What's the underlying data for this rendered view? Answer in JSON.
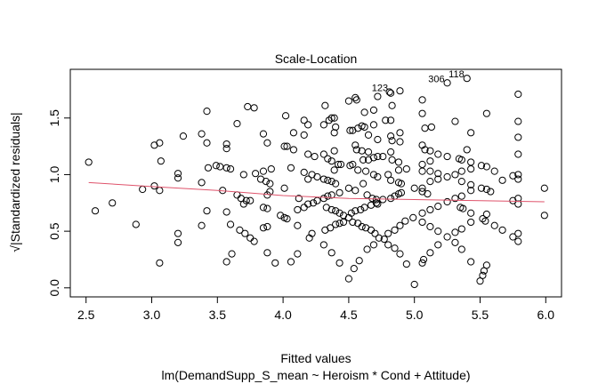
{
  "chart_data": {
    "type": "scatter",
    "title": "Scale-Location",
    "xlabel": "Fitted values",
    "ylabel": "√|Standardized residuals|",
    "subtitle": "lm(DemandSupp_S_mean ~ Heroism * Cond + Attitude)",
    "xlim": [
      2.38,
      6.12
    ],
    "ylim": [
      -0.08,
      1.93
    ],
    "x_ticks": [
      "2.5",
      "3.0",
      "3.5",
      "4.0",
      "4.5",
      "5.0",
      "5.5",
      "6.0"
    ],
    "y_ticks": [
      "0.0",
      "0.5",
      "1.0",
      "1.5"
    ],
    "grid": false,
    "point_color": "#000000",
    "smooth_color": "#DF536B",
    "smooth_line": [
      [
        2.52,
        0.93
      ],
      [
        3.0,
        0.895
      ],
      [
        3.5,
        0.86
      ],
      [
        4.0,
        0.815
      ],
      [
        4.5,
        0.79
      ],
      [
        5.0,
        0.78
      ],
      [
        5.5,
        0.77
      ],
      [
        5.99,
        0.76
      ]
    ],
    "labeled_points": [
      {
        "label": "123",
        "x": 4.82,
        "y": 1.73
      },
      {
        "label": "306",
        "x": 5.25,
        "y": 1.81
      },
      {
        "label": "118",
        "x": 5.4,
        "y": 1.85
      }
    ],
    "points": [
      [
        2.52,
        1.11
      ],
      [
        2.57,
        0.68
      ],
      [
        2.7,
        0.75
      ],
      [
        2.88,
        0.56
      ],
      [
        2.93,
        0.87
      ],
      [
        3.02,
        1.26
      ],
      [
        3.06,
        1.28
      ],
      [
        3.02,
        0.9
      ],
      [
        3.06,
        0.86
      ],
      [
        3.07,
        1.12
      ],
      [
        3.06,
        0.22
      ],
      [
        3.2,
        1.01
      ],
      [
        3.2,
        0.97
      ],
      [
        3.2,
        0.48
      ],
      [
        3.2,
        0.4
      ],
      [
        3.24,
        1.34
      ],
      [
        3.38,
        1.36
      ],
      [
        3.38,
        0.93
      ],
      [
        3.38,
        0.55
      ],
      [
        3.42,
        1.56
      ],
      [
        3.42,
        1.28
      ],
      [
        3.42,
        0.68
      ],
      [
        3.43,
        1.06
      ],
      [
        3.49,
        1.08
      ],
      [
        3.52,
        1.07
      ],
      [
        3.54,
        0.86
      ],
      [
        3.57,
        1.27
      ],
      [
        3.57,
        1.23
      ],
      [
        3.57,
        1.06
      ],
      [
        3.57,
        0.67
      ],
      [
        3.57,
        0.23
      ],
      [
        3.6,
        1.05
      ],
      [
        3.6,
        0.56
      ],
      [
        3.61,
        0.3
      ],
      [
        3.65,
        1.45
      ],
      [
        3.65,
        0.82
      ],
      [
        3.68,
        0.79
      ],
      [
        3.67,
        0.51
      ],
      [
        3.7,
        1.0
      ],
      [
        3.7,
        0.74
      ],
      [
        3.71,
        0.48
      ],
      [
        3.72,
        0.77
      ],
      [
        3.73,
        1.6
      ],
      [
        3.75,
        0.77
      ],
      [
        3.75,
        0.44
      ],
      [
        3.78,
        1.59
      ],
      [
        3.78,
        0.41
      ],
      [
        3.79,
        1.01
      ],
      [
        3.83,
        0.96
      ],
      [
        3.85,
        1.36
      ],
      [
        3.85,
        1.03
      ],
      [
        3.85,
        0.71
      ],
      [
        3.85,
        0.53
      ],
      [
        3.87,
        0.94
      ],
      [
        3.88,
        1.28
      ],
      [
        3.88,
        0.82
      ],
      [
        3.88,
        0.7
      ],
      [
        3.88,
        0.54
      ],
      [
        3.88,
        0.31
      ],
      [
        3.9,
        0.92
      ],
      [
        3.9,
        0.85
      ],
      [
        3.91,
        1.05
      ],
      [
        3.94,
        0.22
      ],
      [
        3.98,
        0.64
      ],
      [
        4.01,
        0.88
      ],
      [
        4.01,
        0.62
      ],
      [
        4.03,
        0.61
      ],
      [
        4.02,
        1.52
      ],
      [
        4.01,
        1.25
      ],
      [
        4.03,
        1.25
      ],
      [
        4.06,
        0.23
      ],
      [
        4.06,
        1.06
      ],
      [
        4.08,
        1.37
      ],
      [
        4.08,
        1.22
      ],
      [
        4.11,
        0.69
      ],
      [
        4.11,
        0.55
      ],
      [
        4.11,
        0.3
      ],
      [
        4.5,
        1.65
      ],
      [
        4.55,
        1.68
      ],
      [
        4.56,
        1.66
      ],
      [
        4.32,
        1.61
      ],
      [
        4.62,
        1.55
      ],
      [
        4.69,
        1.57
      ],
      [
        4.72,
        1.69
      ],
      [
        4.81,
        1.73
      ],
      [
        4.82,
        1.72
      ],
      [
        4.89,
        1.74
      ],
      [
        4.83,
        1.61
      ],
      [
        4.16,
        1.48
      ],
      [
        4.19,
        1.44
      ],
      [
        4.16,
        1.35
      ],
      [
        4.31,
        1.44
      ],
      [
        4.35,
        1.48
      ],
      [
        4.37,
        1.5
      ],
      [
        4.39,
        1.5
      ],
      [
        4.4,
        1.42
      ],
      [
        4.39,
        1.37
      ],
      [
        4.51,
        1.39
      ],
      [
        4.53,
        1.39
      ],
      [
        4.57,
        1.41
      ],
      [
        4.6,
        1.43
      ],
      [
        4.62,
        1.42
      ],
      [
        4.65,
        1.35
      ],
      [
        4.69,
        1.44
      ],
      [
        4.72,
        1.31
      ],
      [
        4.78,
        1.48
      ],
      [
        4.82,
        1.48
      ],
      [
        4.82,
        1.34
      ],
      [
        4.83,
        1.3
      ],
      [
        4.89,
        1.37
      ],
      [
        4.89,
        1.29
      ],
      [
        4.55,
        1.26
      ],
      [
        4.56,
        1.22
      ],
      [
        4.6,
        1.21
      ],
      [
        4.65,
        1.2
      ],
      [
        4.19,
        1.18
      ],
      [
        4.24,
        1.16
      ],
      [
        4.31,
        1.18
      ],
      [
        4.34,
        1.14
      ],
      [
        4.39,
        1.21
      ],
      [
        4.37,
        1.12
      ],
      [
        4.42,
        1.09
      ],
      [
        4.39,
        1.04
      ],
      [
        4.44,
        1.09
      ],
      [
        4.51,
        1.08
      ],
      [
        4.53,
        1.09
      ],
      [
        4.57,
        1.04
      ],
      [
        4.61,
        1.13
      ],
      [
        4.65,
        1.13
      ],
      [
        4.69,
        1.15
      ],
      [
        4.72,
        1.16
      ],
      [
        4.76,
        1.16
      ],
      [
        4.82,
        1.2
      ],
      [
        4.83,
        1.13
      ],
      [
        4.88,
        1.11
      ],
      [
        4.94,
        1.05
      ],
      [
        4.16,
        1.02
      ],
      [
        4.22,
        1.0
      ],
      [
        4.19,
        0.96
      ],
      [
        4.26,
        0.98
      ],
      [
        4.31,
        0.96
      ],
      [
        4.34,
        0.95
      ],
      [
        4.37,
        0.94
      ],
      [
        4.4,
        0.92
      ],
      [
        4.43,
        0.84
      ],
      [
        4.5,
        0.88
      ],
      [
        4.55,
        0.86
      ],
      [
        4.61,
        0.92
      ],
      [
        4.63,
        1.03
      ],
      [
        4.69,
        1.0
      ],
      [
        4.72,
        0.98
      ],
      [
        4.8,
        1.0
      ],
      [
        4.82,
        0.95
      ],
      [
        4.88,
        0.93
      ],
      [
        4.9,
        0.92
      ],
      [
        4.88,
        1.04
      ],
      [
        4.64,
        0.82
      ],
      [
        4.68,
        0.79
      ],
      [
        4.71,
        0.78
      ],
      [
        4.72,
        0.74
      ],
      [
        4.76,
        0.78
      ],
      [
        4.82,
        0.79
      ],
      [
        4.85,
        0.81
      ],
      [
        4.88,
        0.83
      ],
      [
        4.9,
        0.84
      ],
      [
        4.12,
        0.79
      ],
      [
        4.16,
        0.71
      ],
      [
        4.19,
        0.74
      ],
      [
        4.23,
        0.75
      ],
      [
        4.26,
        0.77
      ],
      [
        4.31,
        0.79
      ],
      [
        4.34,
        0.81
      ],
      [
        4.37,
        0.82
      ],
      [
        4.33,
        0.71
      ],
      [
        4.37,
        0.69
      ],
      [
        4.4,
        0.68
      ],
      [
        4.43,
        0.66
      ],
      [
        4.46,
        0.64
      ],
      [
        4.5,
        0.62
      ],
      [
        4.52,
        0.66
      ],
      [
        4.55,
        0.68
      ],
      [
        4.59,
        0.69
      ],
      [
        4.62,
        0.71
      ],
      [
        4.67,
        0.73
      ],
      [
        4.71,
        0.75
      ],
      [
        4.53,
        0.58
      ],
      [
        4.57,
        0.57
      ],
      [
        4.6,
        0.54
      ],
      [
        4.63,
        0.53
      ],
      [
        4.67,
        0.51
      ],
      [
        4.7,
        0.48
      ],
      [
        4.73,
        0.44
      ],
      [
        4.77,
        0.43
      ],
      [
        4.46,
        0.58
      ],
      [
        4.43,
        0.57
      ],
      [
        4.4,
        0.56
      ],
      [
        4.36,
        0.53
      ],
      [
        4.32,
        0.51
      ],
      [
        4.22,
        0.48
      ],
      [
        4.2,
        0.44
      ],
      [
        4.31,
        0.38
      ],
      [
        4.37,
        0.31
      ],
      [
        4.43,
        0.22
      ],
      [
        4.54,
        0.17
      ],
      [
        4.5,
        0.08
      ],
      [
        4.58,
        0.24
      ],
      [
        4.64,
        0.34
      ],
      [
        4.69,
        0.38
      ],
      [
        4.8,
        0.48
      ],
      [
        4.85,
        0.51
      ],
      [
        4.89,
        0.55
      ],
      [
        4.93,
        0.59
      ],
      [
        4.99,
        0.62
      ],
      [
        4.8,
        0.38
      ],
      [
        4.85,
        0.35
      ],
      [
        4.89,
        0.3
      ],
      [
        4.94,
        0.21
      ],
      [
        5.0,
        0.03
      ],
      [
        5.06,
        0.22
      ],
      [
        5.07,
        0.25
      ],
      [
        5.12,
        0.31
      ],
      [
        5.18,
        0.38
      ],
      [
        5.25,
        0.45
      ],
      [
        5.31,
        0.49
      ],
      [
        5.36,
        0.52
      ],
      [
        5.31,
        0.4
      ],
      [
        5.36,
        0.34
      ],
      [
        5.43,
        0.23
      ],
      [
        5.5,
        0.06
      ],
      [
        5.52,
        0.11
      ],
      [
        5.53,
        0.15
      ],
      [
        5.55,
        0.2
      ],
      [
        5.06,
        0.58
      ],
      [
        5.12,
        0.54
      ],
      [
        5.18,
        0.5
      ],
      [
        5.06,
        0.66
      ],
      [
        5.12,
        0.69
      ],
      [
        5.18,
        0.72
      ],
      [
        5.25,
        0.76
      ],
      [
        5.31,
        0.79
      ],
      [
        5.36,
        0.81
      ],
      [
        5.35,
        0.71
      ],
      [
        5.37,
        0.7
      ],
      [
        5.43,
        0.66
      ],
      [
        5.43,
        0.58
      ],
      [
        5.52,
        0.61
      ],
      [
        5.54,
        0.59
      ],
      [
        5.61,
        0.55
      ],
      [
        5.67,
        0.51
      ],
      [
        5.75,
        0.45
      ],
      [
        5.79,
        0.48
      ],
      [
        5.79,
        0.41
      ],
      [
        5.55,
        0.65
      ],
      [
        5.0,
        0.88
      ],
      [
        5.06,
        0.88
      ],
      [
        5.06,
        0.85
      ],
      [
        5.1,
        0.83
      ],
      [
        5.12,
        0.94
      ],
      [
        5.18,
        0.96
      ],
      [
        5.25,
        0.98
      ],
      [
        5.31,
        1.0
      ],
      [
        5.36,
        1.03
      ],
      [
        5.36,
        0.94
      ],
      [
        5.43,
        0.91
      ],
      [
        5.43,
        0.86
      ],
      [
        5.51,
        0.88
      ],
      [
        5.55,
        0.87
      ],
      [
        5.58,
        0.85
      ],
      [
        5.75,
        0.77
      ],
      [
        5.79,
        0.79
      ],
      [
        5.79,
        0.74
      ],
      [
        5.99,
        0.88
      ],
      [
        5.99,
        0.64
      ],
      [
        5.06,
        1.26
      ],
      [
        5.08,
        1.22
      ],
      [
        5.12,
        1.21
      ],
      [
        5.18,
        1.18
      ],
      [
        5.25,
        1.16
      ],
      [
        5.34,
        1.14
      ],
      [
        5.36,
        1.13
      ],
      [
        5.4,
        1.22
      ],
      [
        5.06,
        1.09
      ],
      [
        5.12,
        1.12
      ],
      [
        5.06,
        1.03
      ],
      [
        5.12,
        1.03
      ],
      [
        5.18,
        1.01
      ],
      [
        5.43,
        1.11
      ],
      [
        5.43,
        1.05
      ],
      [
        5.51,
        1.08
      ],
      [
        5.55,
        1.07
      ],
      [
        5.61,
        1.03
      ],
      [
        5.67,
        0.95
      ],
      [
        5.75,
        0.99
      ],
      [
        5.79,
        1.0
      ],
      [
        5.79,
        0.96
      ],
      [
        5.06,
        1.66
      ],
      [
        5.06,
        1.54
      ],
      [
        5.08,
        1.41
      ],
      [
        5.13,
        1.42
      ],
      [
        5.31,
        1.47
      ],
      [
        5.43,
        1.37
      ],
      [
        5.55,
        1.54
      ],
      [
        5.79,
        1.71
      ],
      [
        5.79,
        1.47
      ],
      [
        5.79,
        1.33
      ],
      [
        5.79,
        1.18
      ],
      [
        5.25,
        1.81
      ],
      [
        5.4,
        1.85
      ]
    ]
  }
}
